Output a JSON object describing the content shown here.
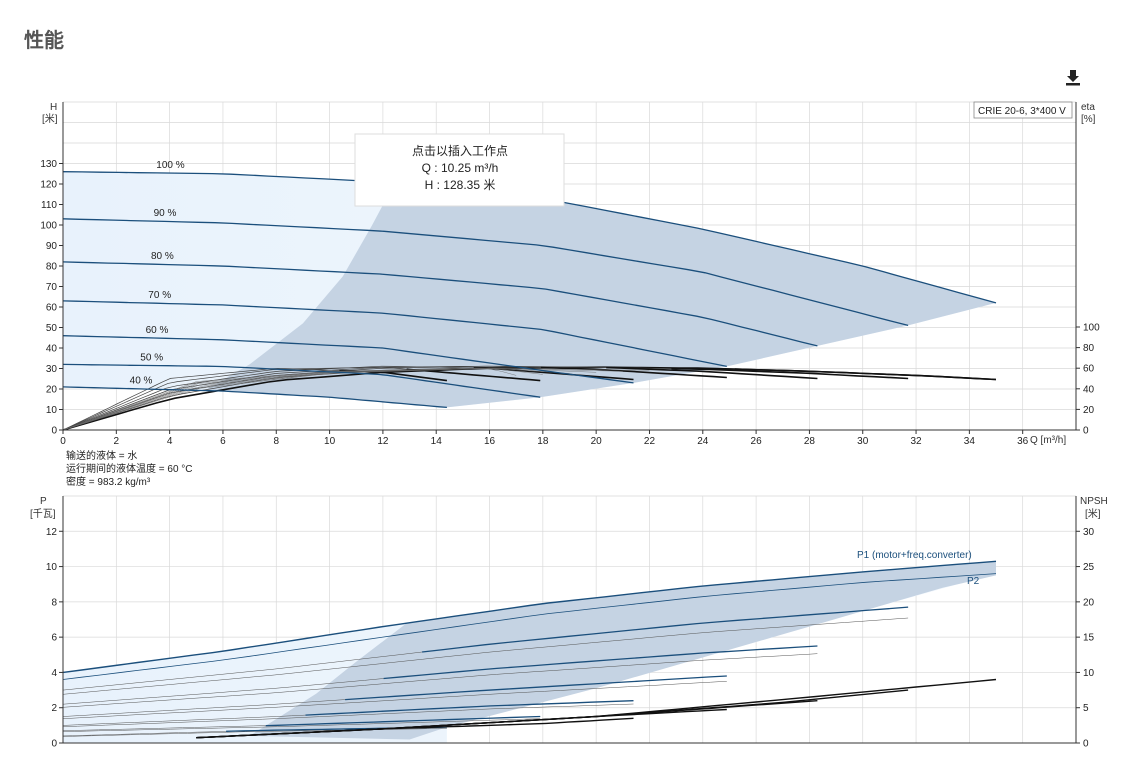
{
  "page": {
    "title": "性能"
  },
  "toolbar": {
    "download_icon": "download-icon"
  },
  "colors": {
    "curve": "#1b4f7c",
    "fill_dark": "#c5d3e3",
    "fill_light": "#e8f2fc",
    "grid": "#d9d9d9",
    "axis": "#333333"
  },
  "tooltip": {
    "line1": "点击以插入工作点",
    "line2": "Q : 10.25 m³/h",
    "line3": "H : 128.35 米"
  },
  "chart_data": [
    {
      "id": "head",
      "type": "line",
      "model_label": "CRIE 20-6, 3*400 V",
      "ylabel": "H\n[米]",
      "y2label": "eta\n[%]",
      "xlabel": "Q [m³/h]",
      "xlim": [
        0,
        38
      ],
      "ylim": [
        0,
        160
      ],
      "xticks": [
        0,
        2,
        4,
        6,
        8,
        10,
        12,
        14,
        16,
        18,
        20,
        22,
        24,
        26,
        28,
        30,
        32,
        34,
        36
      ],
      "yticks": [
        0,
        10,
        20,
        30,
        40,
        50,
        60,
        70,
        80,
        90,
        100,
        110,
        120,
        130
      ],
      "y2ticks": [
        0,
        20,
        40,
        60,
        80,
        100
      ],
      "series": [
        {
          "name": "100 %",
          "x": [
            0,
            6,
            12,
            18,
            24,
            30,
            35
          ],
          "values": [
            126,
            125,
            121,
            113,
            98,
            80,
            62
          ]
        },
        {
          "name": "90 %",
          "x": [
            0,
            6,
            12,
            18,
            24,
            31.7
          ],
          "values": [
            103,
            101,
            97,
            90,
            77,
            51
          ]
        },
        {
          "name": "80 %",
          "x": [
            0,
            6,
            12,
            18,
            24,
            28.3
          ],
          "values": [
            82,
            80,
            76,
            69,
            55,
            41
          ]
        },
        {
          "name": "70 %",
          "x": [
            0,
            6,
            12,
            18,
            24.9
          ],
          "values": [
            63,
            61,
            57,
            49,
            31
          ]
        },
        {
          "name": "60 %",
          "x": [
            0,
            6,
            12,
            18,
            21.4
          ],
          "values": [
            46,
            44,
            40,
            29,
            23
          ]
        },
        {
          "name": "50 %",
          "x": [
            0,
            6,
            12,
            17.9
          ],
          "values": [
            32,
            31,
            27,
            16
          ]
        },
        {
          "name": "40 %",
          "x": [
            0,
            6,
            10,
            14.4
          ],
          "values": [
            21,
            19,
            16,
            11
          ]
        }
      ],
      "efficiency_series": [
        {
          "x": [
            0,
            4,
            8,
            12,
            16,
            20,
            24,
            28,
            32,
            35
          ],
          "values": [
            0,
            30,
            48,
            56,
            60,
            61,
            60,
            57,
            53,
            49
          ]
        },
        {
          "x": [
            0,
            4,
            8,
            12,
            16,
            20,
            24,
            28,
            31.7
          ],
          "values": [
            0,
            33,
            51,
            58,
            61,
            61,
            59,
            55,
            50
          ]
        },
        {
          "x": [
            0,
            4,
            8,
            12,
            16,
            20,
            24,
            28.3
          ],
          "values": [
            0,
            36,
            53,
            60,
            62,
            61,
            57,
            50
          ]
        },
        {
          "x": [
            0,
            4,
            8,
            12,
            16,
            20,
            24.9
          ],
          "values": [
            0,
            39,
            55,
            61,
            62,
            59,
            51
          ]
        },
        {
          "x": [
            0,
            4,
            8,
            12,
            16,
            21.4
          ],
          "values": [
            0,
            42,
            57,
            62,
            60,
            49
          ]
        },
        {
          "x": [
            0,
            4,
            8,
            12,
            17.9
          ],
          "values": [
            0,
            46,
            59,
            61,
            48
          ]
        },
        {
          "x": [
            0,
            4,
            8,
            12,
            14.4
          ],
          "values": [
            0,
            50,
            60,
            56,
            48
          ]
        }
      ],
      "notes": [
        "输送的液体 = 水",
        "运行期间的液体温度 = 60 °C",
        "密度 = 983.2 kg/m³"
      ]
    },
    {
      "id": "power",
      "type": "line",
      "ylabel": "P\n[千瓦]",
      "y2label": "NPSH\n[米]",
      "xlim": [
        0,
        38
      ],
      "ylim": [
        0,
        14
      ],
      "yticks": [
        0,
        2,
        4,
        6,
        8,
        10,
        12
      ],
      "y2ticks": [
        0,
        5,
        10,
        15,
        20,
        25,
        30
      ],
      "y2lim": [
        0,
        35
      ],
      "series": [
        {
          "name": "P1 (motor+freq.converter)",
          "x": [
            0,
            6,
            12,
            18,
            24,
            30,
            35
          ],
          "values": [
            4.0,
            5.2,
            6.6,
            7.9,
            8.9,
            9.7,
            10.3
          ]
        },
        {
          "name": "P2",
          "x": [
            0,
            6,
            12,
            18,
            24,
            30,
            35
          ],
          "values": [
            3.6,
            4.7,
            6.0,
            7.3,
            8.3,
            9.1,
            9.6
          ]
        }
      ],
      "speed_power_p1": [
        {
          "x": [
            0,
            8,
            16,
            24,
            31.7
          ],
          "values": [
            3.0,
            4.2,
            5.6,
            6.8,
            7.7
          ]
        },
        {
          "x": [
            0,
            8,
            16,
            24,
            28.3
          ],
          "values": [
            2.2,
            3.1,
            4.2,
            5.1,
            5.5
          ]
        },
        {
          "x": [
            0,
            8,
            16,
            24.9
          ],
          "values": [
            1.5,
            2.2,
            3.0,
            3.8
          ]
        },
        {
          "x": [
            0,
            8,
            16,
            21.4
          ],
          "values": [
            1.0,
            1.5,
            2.1,
            2.4
          ]
        },
        {
          "x": [
            0,
            8,
            17.9
          ],
          "values": [
            0.7,
            1.0,
            1.5
          ]
        },
        {
          "x": [
            0,
            7,
            14.4
          ],
          "values": [
            0.4,
            0.7,
            0.9
          ]
        }
      ],
      "npsh_series": [
        {
          "x": [
            5,
            12,
            20,
            28,
            35
          ],
          "values": [
            0.3,
            0.8,
            1.5,
            2.6,
            3.6
          ]
        },
        {
          "x": [
            5,
            12,
            20,
            27,
            31.7
          ],
          "values": [
            0.3,
            0.8,
            1.5,
            2.3,
            3.0
          ]
        },
        {
          "x": [
            5,
            12,
            20,
            28.3
          ],
          "values": [
            0.3,
            0.8,
            1.5,
            2.4
          ]
        },
        {
          "x": [
            5,
            12,
            20,
            24.9
          ],
          "values": [
            0.3,
            0.8,
            1.5,
            1.9
          ]
        },
        {
          "x": [
            5,
            12,
            18,
            21.4
          ],
          "values": [
            0.3,
            0.8,
            1.1,
            1.4
          ]
        }
      ]
    }
  ]
}
